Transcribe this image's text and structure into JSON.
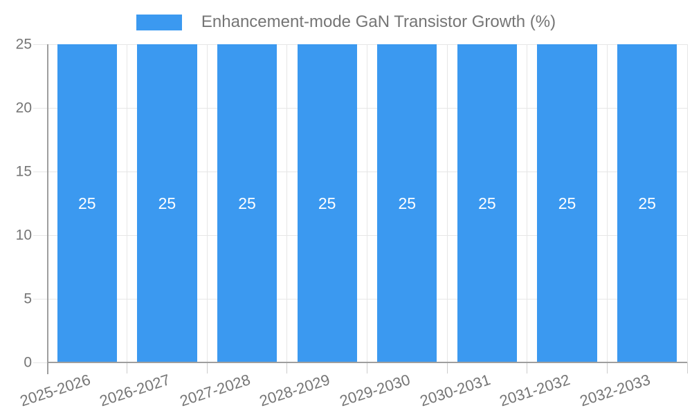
{
  "chart_data": {
    "type": "bar",
    "title": "Enhancement-mode GaN Transistor Growth (%)",
    "categories": [
      "2025-2026",
      "2026-2027",
      "2027-2028",
      "2028-2029",
      "2029-2030",
      "2030-2031",
      "2031-2032",
      "2032-2033"
    ],
    "values": [
      25,
      25,
      25,
      25,
      25,
      25,
      25,
      25
    ],
    "bar_labels": [
      "25",
      "25",
      "25",
      "25",
      "25",
      "25",
      "25",
      "25"
    ],
    "xlabel": "",
    "ylabel": "",
    "ylim": [
      0,
      25
    ],
    "yticks": [
      0,
      5,
      10,
      15,
      20,
      25
    ],
    "grid": true,
    "legend_position": "top",
    "x_label_rotation_deg": -18
  },
  "colors": {
    "bar": "#3B99F0",
    "bar_label": "#FFFFFF",
    "text": "#757575",
    "grid": "#E6E6E6",
    "tick": "#CCCCCC",
    "axis": "#9E9E9E",
    "background": "#FFFFFF"
  }
}
